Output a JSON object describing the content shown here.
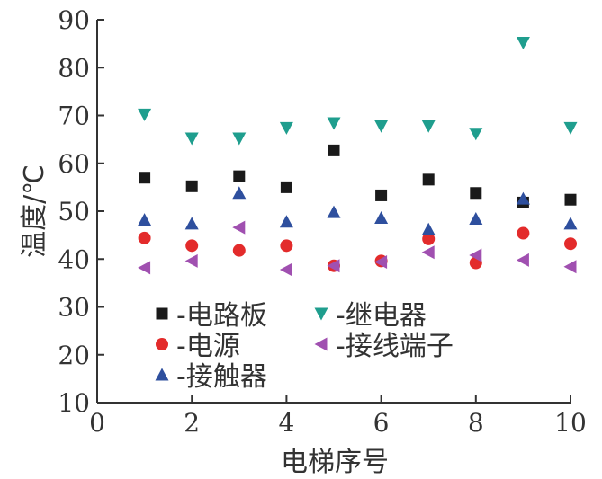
{
  "chart_data": {
    "type": "scatter",
    "title": "",
    "xlabel": "电梯序号",
    "ylabel": "温度/℃",
    "xlim": [
      0,
      10
    ],
    "ylim": [
      10,
      90
    ],
    "xticks": [
      "0",
      "2",
      "4",
      "6",
      "8",
      "10"
    ],
    "yticks": [
      "10",
      "20",
      "30",
      "40",
      "50",
      "60",
      "70",
      "80",
      "90"
    ],
    "grid": false,
    "legend_position": "bottom-left",
    "x": [
      1,
      2,
      3,
      4,
      5,
      6,
      7,
      8,
      9,
      10
    ],
    "series": [
      {
        "name": "电路板",
        "marker": "square",
        "color": "#1a1a1a",
        "values": [
          57,
          55.2,
          57.3,
          55,
          62.7,
          53.3,
          56.6,
          53.8,
          51.8,
          52.4
        ]
      },
      {
        "name": "继电器",
        "marker": "triangle-down",
        "color": "#1f9e8e",
        "values": [
          70.2,
          65.2,
          65.2,
          67.4,
          68.4,
          67.8,
          67.8,
          66.2,
          85.2,
          67.4
        ]
      },
      {
        "name": "电源",
        "marker": "circle",
        "color": "#e32b2b",
        "values": [
          44.4,
          42.8,
          41.8,
          42.8,
          38.6,
          39.6,
          44.2,
          39.2,
          45.4,
          43.2
        ]
      },
      {
        "name": "接线端子",
        "marker": "triangle-left",
        "color": "#a050b0",
        "values": [
          38.2,
          39.6,
          46.6,
          37.8,
          38.6,
          39.4,
          41.4,
          40.8,
          39.8,
          38.4
        ]
      },
      {
        "name": "接触器",
        "marker": "triangle-up",
        "color": "#2e4f9e",
        "values": [
          48.2,
          47.4,
          53.8,
          47.8,
          49.8,
          48.6,
          46.2,
          48.4,
          52.6,
          47.4
        ]
      }
    ]
  }
}
